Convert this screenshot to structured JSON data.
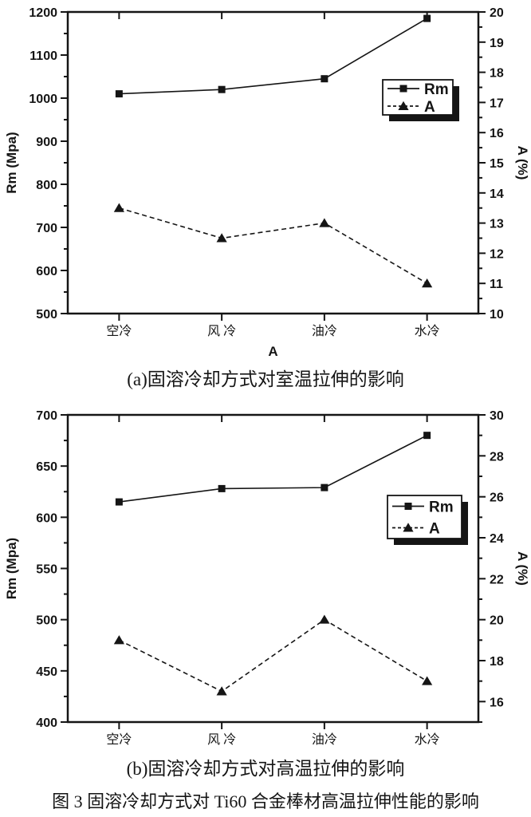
{
  "page": {
    "background": "#ffffff",
    "ink": "#151515"
  },
  "figure_caption": "图 3 固溶冷却方式对 Ti60 合金棒材高温拉伸性能的影响",
  "chart_data": [
    {
      "id": "a",
      "type": "line",
      "caption": "(a)固溶冷却方式对室温拉伸的影响",
      "categories": [
        "空冷",
        "风 冷",
        "油冷",
        "水冷"
      ],
      "xlabel": "A",
      "grid": false,
      "legend_position": "inside-right",
      "left_axis": {
        "label": "Rm (Mpa)",
        "min": 500,
        "max": 1200,
        "major": 100,
        "minor": 50,
        "first_label": 500
      },
      "right_axis": {
        "label": "A (%)",
        "min": 10,
        "max": 20,
        "major": 1,
        "minor": 0.5,
        "first_label": 10
      },
      "series": [
        {
          "name": "Rm",
          "axis": "left",
          "marker": "square",
          "line": "solid",
          "values": [
            1010,
            1020,
            1045,
            1185
          ]
        },
        {
          "name": "A",
          "axis": "right",
          "marker": "triangle",
          "line": "dashed",
          "values": [
            13.5,
            12.5,
            13,
            11
          ]
        }
      ]
    },
    {
      "id": "b",
      "type": "line",
      "caption": "(b)固溶冷却方式对高温拉伸的影响",
      "categories": [
        "空冷",
        "风 冷",
        "油冷",
        "水冷"
      ],
      "xlabel": "",
      "grid": false,
      "legend_position": "inside-right",
      "left_axis": {
        "label": "Rm (Mpa)",
        "min": 400,
        "max": 700,
        "major": 50,
        "minor": 25,
        "first_label": 400
      },
      "right_axis": {
        "label": "A (%)",
        "min": 15,
        "max": 30,
        "major": 2,
        "minor": 1,
        "first_label": 16
      },
      "series": [
        {
          "name": "Rm",
          "axis": "left",
          "marker": "square",
          "line": "solid",
          "values": [
            615,
            628,
            629,
            680
          ]
        },
        {
          "name": "A",
          "axis": "right",
          "marker": "triangle",
          "line": "dashed",
          "values": [
            19,
            16.5,
            20,
            17
          ]
        }
      ]
    }
  ]
}
